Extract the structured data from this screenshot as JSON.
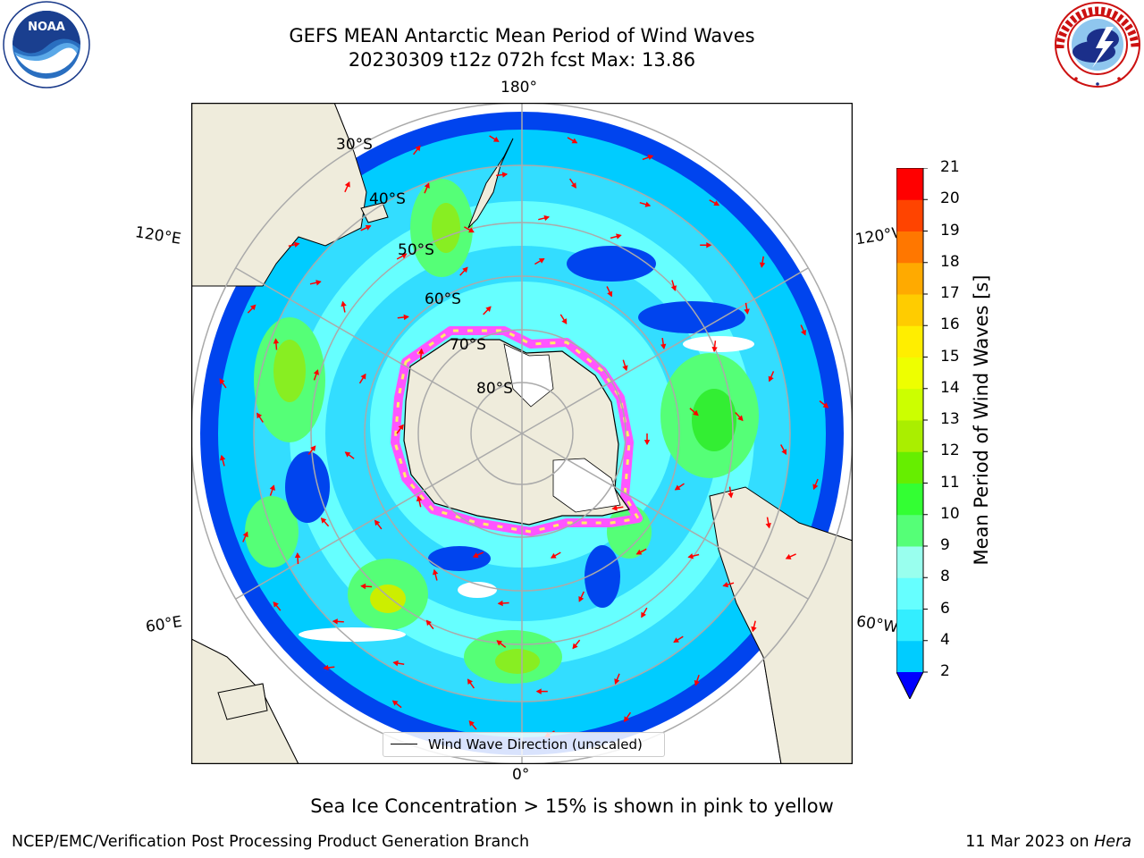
{
  "title": {
    "line1": "GEFS MEAN Antarctic Mean Period of Wind Waves",
    "line2": "20230309 t12z 072h fcst   Max: 13.86"
  },
  "logos": {
    "left": {
      "name": "NOAA",
      "ring_text": "NATIONAL OCEANIC AND ATMOSPHERIC ADMINISTRATION · U.S. DEPARTMENT OF COMMERCE"
    },
    "right": {
      "name": "NATIONAL WEATHER SERVICE"
    }
  },
  "map": {
    "projection": "south-polar-stereographic",
    "longitude_labels": [
      "180°",
      "120°E",
      "120°W",
      "60°E",
      "60°W",
      "0°"
    ],
    "latitude_labels": [
      "30°S",
      "40°S",
      "50°S",
      "60°S",
      "70°S",
      "80°S"
    ],
    "land_color": "#efecdc",
    "ocean_no_data_color": "#ffffff",
    "arrow_color": "#ff0000",
    "sea_ice_colors": [
      "#ff55ff",
      "#ff99cc",
      "#ffee66"
    ]
  },
  "colorbar": {
    "label": "Mean Period of Wind Waves [s]",
    "ticks": [
      "2",
      "4",
      "6",
      "8",
      "9",
      "10",
      "11",
      "12",
      "13",
      "14",
      "15",
      "16",
      "17",
      "18",
      "19",
      "20",
      "21"
    ],
    "colors": [
      "#0066ff",
      "#00ccff",
      "#33eeff",
      "#66ffff",
      "#99ffee",
      "#55ff77",
      "#33ff33",
      "#66ee00",
      "#aaee00",
      "#ccff00",
      "#eeff00",
      "#ffee00",
      "#ffcc00",
      "#ffaa00",
      "#ff7700",
      "#ff4400",
      "#ff0000"
    ],
    "extend_color": "#0000ff"
  },
  "legend": {
    "label": "Wind Wave Direction (unscaled)"
  },
  "sea_ice_note": "Sea Ice Concentration > 15% is shown in pink to yellow",
  "footer": {
    "left": "NCEP/EMC/Verification Post Processing Product Generation Branch",
    "date": "11 Mar 2023 on",
    "machine": "Hera"
  }
}
